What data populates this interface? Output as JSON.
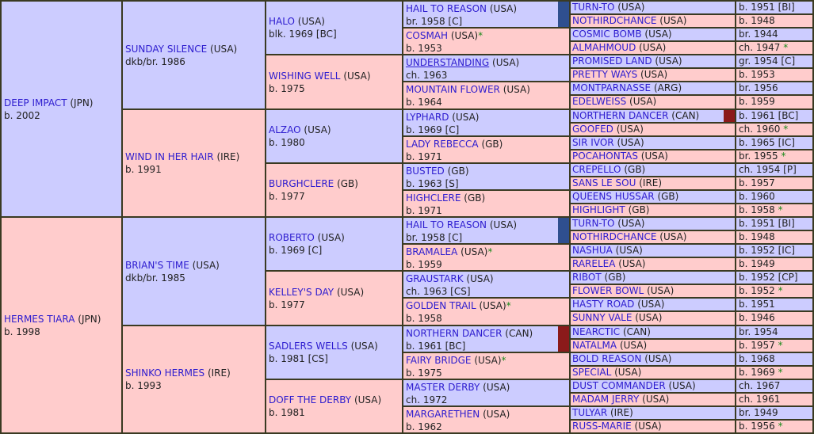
{
  "pedigree": {
    "g1": [
      {
        "name": "DEEP IMPACT",
        "country": "(JPN)",
        "detail": "b. 2002"
      },
      {
        "name": "HERMES TIARA",
        "country": "(JPN)",
        "detail": "b. 1998"
      }
    ],
    "g2": [
      {
        "name": "SUNDAY SILENCE",
        "country": "(USA)",
        "detail": "dkb/br. 1986"
      },
      {
        "name": "WIND IN HER HAIR",
        "country": "(IRE)",
        "detail": "b. 1991"
      },
      {
        "name": "BRIAN'S TIME",
        "country": "(USA)",
        "detail": "dkb/br. 1985"
      },
      {
        "name": "SHINKO HERMES",
        "country": "(IRE)",
        "detail": "b. 1993"
      }
    ],
    "g3": [
      {
        "name": "HALO",
        "country": "(USA)",
        "detail": "blk. 1969 [BC]"
      },
      {
        "name": "WISHING WELL",
        "country": "(USA)",
        "detail": "b. 1975"
      },
      {
        "name": "ALZAO",
        "country": "(USA)",
        "detail": "b. 1980"
      },
      {
        "name": "BURGHCLERE",
        "country": "(GB)",
        "detail": "b. 1977"
      },
      {
        "name": "ROBERTO",
        "country": "(USA)",
        "detail": "b. 1969 [C]"
      },
      {
        "name": "KELLEY'S DAY",
        "country": "(USA)",
        "detail": "b. 1977"
      },
      {
        "name": "SADLERS WELLS",
        "country": "(USA)",
        "detail": "b. 1981 [CS]"
      },
      {
        "name": "DOFF THE DERBY",
        "country": "(USA)",
        "detail": "b. 1981"
      }
    ],
    "g4": [
      {
        "name": "HAIL TO REASON",
        "country": "(USA)",
        "star": "",
        "detail": "br. 1958 [C]",
        "marker": "#2f4f8f"
      },
      {
        "name": "COSMAH",
        "country": "(USA)",
        "star": "*",
        "detail": "b. 1953"
      },
      {
        "name": "UNDERSTANDING",
        "country": "(USA)",
        "star": "",
        "detail": "ch. 1963",
        "underline": true
      },
      {
        "name": "MOUNTAIN FLOWER",
        "country": "(USA)",
        "star": "",
        "detail": "b. 1964"
      },
      {
        "name": "LYPHARD",
        "country": "(USA)",
        "star": "",
        "detail": "b. 1969 [C]"
      },
      {
        "name": "LADY REBECCA",
        "country": "(GB)",
        "star": "",
        "detail": "b. 1971"
      },
      {
        "name": "BUSTED",
        "country": "(GB)",
        "star": "",
        "detail": "b. 1963 [S]"
      },
      {
        "name": "HIGHCLERE",
        "country": "(GB)",
        "star": "",
        "detail": "b. 1971"
      },
      {
        "name": "HAIL TO REASON",
        "country": "(USA)",
        "star": "",
        "detail": "br. 1958 [C]",
        "marker": "#2f4f8f"
      },
      {
        "name": "BRAMALEA",
        "country": "(USA)",
        "star": "*",
        "detail": "b. 1959"
      },
      {
        "name": "GRAUSTARK",
        "country": "(USA)",
        "star": "",
        "detail": "ch. 1963 [CS]"
      },
      {
        "name": "GOLDEN TRAIL",
        "country": "(USA)",
        "star": "*",
        "detail": "b. 1958"
      },
      {
        "name": "NORTHERN DANCER",
        "country": "(CAN)",
        "star": "",
        "detail": "b. 1961 [BC]",
        "marker": "#8b1a1a"
      },
      {
        "name": "FAIRY BRIDGE",
        "country": "(USA)",
        "star": "*",
        "detail": "b. 1975"
      },
      {
        "name": "MASTER DERBY",
        "country": "(USA)",
        "star": "",
        "detail": "ch. 1972"
      },
      {
        "name": "MARGARETHEN",
        "country": "(USA)",
        "star": "",
        "detail": "b. 1962"
      }
    ],
    "g5": [
      {
        "name": "TURN-TO",
        "country": "(USA)",
        "detail": "b. 1951 [BI]",
        "star": ""
      },
      {
        "name": "NOTHIRDCHANCE",
        "country": "(USA)",
        "detail": "b. 1948",
        "star": ""
      },
      {
        "name": "COSMIC BOMB",
        "country": "(USA)",
        "detail": "br. 1944",
        "star": ""
      },
      {
        "name": "ALMAHMOUD",
        "country": "(USA)",
        "detail": "ch. 1947",
        "star": "*"
      },
      {
        "name": "PROMISED LAND",
        "country": "(USA)",
        "detail": "gr. 1954 [C]",
        "star": ""
      },
      {
        "name": "PRETTY WAYS",
        "country": "(USA)",
        "detail": "b. 1953",
        "star": ""
      },
      {
        "name": "MONTPARNASSE",
        "country": "(ARG)",
        "detail": "br. 1956",
        "star": ""
      },
      {
        "name": "EDELWEISS",
        "country": "(USA)",
        "detail": "b. 1959",
        "star": ""
      },
      {
        "name": "NORTHERN DANCER",
        "country": "(CAN)",
        "detail": "b. 1961 [BC]",
        "star": "",
        "marker": "#8b1a1a"
      },
      {
        "name": "GOOFED",
        "country": "(USA)",
        "detail": "ch. 1960",
        "star": "*"
      },
      {
        "name": "SIR IVOR",
        "country": "(USA)",
        "detail": "b. 1965 [IC]",
        "star": ""
      },
      {
        "name": "POCAHONTAS",
        "country": "(USA)",
        "detail": "br. 1955",
        "star": "*"
      },
      {
        "name": "CREPELLO",
        "country": "(GB)",
        "detail": "ch. 1954 [P]",
        "star": ""
      },
      {
        "name": "SANS LE SOU",
        "country": "(IRE)",
        "detail": "b. 1957",
        "star": ""
      },
      {
        "name": "QUEENS HUSSAR",
        "country": "(GB)",
        "detail": "b. 1960",
        "star": ""
      },
      {
        "name": "HIGHLIGHT",
        "country": "(GB)",
        "detail": "b. 1958",
        "star": "*"
      },
      {
        "name": "TURN-TO",
        "country": "(USA)",
        "detail": "b. 1951 [BI]",
        "star": ""
      },
      {
        "name": "NOTHIRDCHANCE",
        "country": "(USA)",
        "detail": "b. 1948",
        "star": ""
      },
      {
        "name": "NASHUA",
        "country": "(USA)",
        "detail": "b. 1952 [IC]",
        "star": ""
      },
      {
        "name": "RARELEA",
        "country": "(USA)",
        "detail": "b. 1949",
        "star": ""
      },
      {
        "name": "RIBOT",
        "country": "(GB)",
        "detail": "b. 1952 [CP]",
        "star": ""
      },
      {
        "name": "FLOWER BOWL",
        "country": "(USA)",
        "detail": "b. 1952",
        "star": "*"
      },
      {
        "name": "HASTY ROAD",
        "country": "(USA)",
        "detail": "b. 1951",
        "star": ""
      },
      {
        "name": "SUNNY VALE",
        "country": "(USA)",
        "detail": "b. 1946",
        "star": ""
      },
      {
        "name": "NEARCTIC",
        "country": "(CAN)",
        "detail": "br. 1954",
        "star": ""
      },
      {
        "name": "NATALMA",
        "country": "(USA)",
        "detail": "b. 1957",
        "star": "*"
      },
      {
        "name": "BOLD REASON",
        "country": "(USA)",
        "detail": "b. 1968",
        "star": ""
      },
      {
        "name": "SPECIAL",
        "country": "(USA)",
        "detail": "b. 1969",
        "star": "*"
      },
      {
        "name": "DUST COMMANDER",
        "country": "(USA)",
        "detail": "ch. 1967",
        "star": ""
      },
      {
        "name": "MADAM JERRY",
        "country": "(USA)",
        "detail": "ch. 1961",
        "star": ""
      },
      {
        "name": "TULYAR",
        "country": "(IRE)",
        "detail": "br. 1949",
        "star": ""
      },
      {
        "name": "RUSS-MARIE",
        "country": "(USA)",
        "detail": "b. 1956",
        "star": "*"
      }
    ],
    "colors": {
      "male": "#ccccff",
      "female": "#ffcccc",
      "link": "#2d1ccf",
      "star": "#1a8a1a",
      "grid": "#3a3a22"
    }
  }
}
